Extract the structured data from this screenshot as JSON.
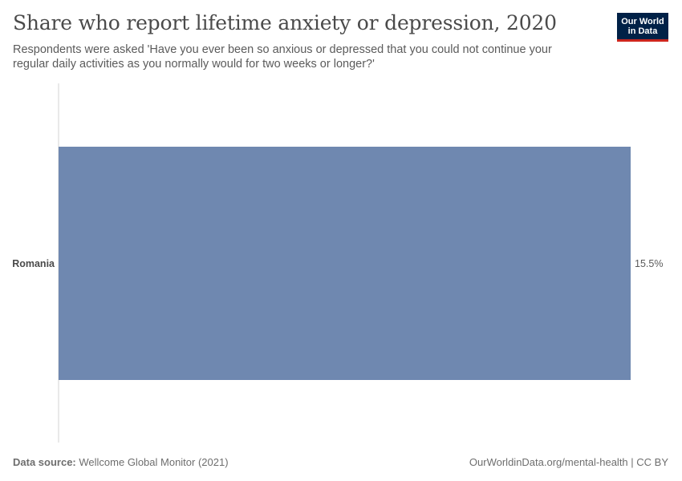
{
  "header": {
    "title": "Share who report lifetime anxiety or depression, 2020",
    "subtitle": "Respondents were asked 'Have you ever been so anxious or depressed that you could not continue your regular daily activities as you normally would for two weeks or longer?'"
  },
  "logo": {
    "line1": "Our World",
    "line2": "in Data"
  },
  "chart_data": {
    "type": "bar",
    "orientation": "horizontal",
    "title": "Share who report lifetime anxiety or depression, 2020",
    "categories": [
      "Romania"
    ],
    "values": [
      15.5
    ],
    "value_labels": [
      "15.5%"
    ],
    "unit": "%",
    "xlim": [
      0,
      15.5
    ],
    "grid": false,
    "colors": {
      "bar": "#6f88b0",
      "axis": "#d3d3d3"
    }
  },
  "footer": {
    "source_label": "Data source:",
    "source_text": "Wellcome Global Monitor (2021)",
    "credit": "OurWorldinData.org/mental-health | CC BY"
  }
}
